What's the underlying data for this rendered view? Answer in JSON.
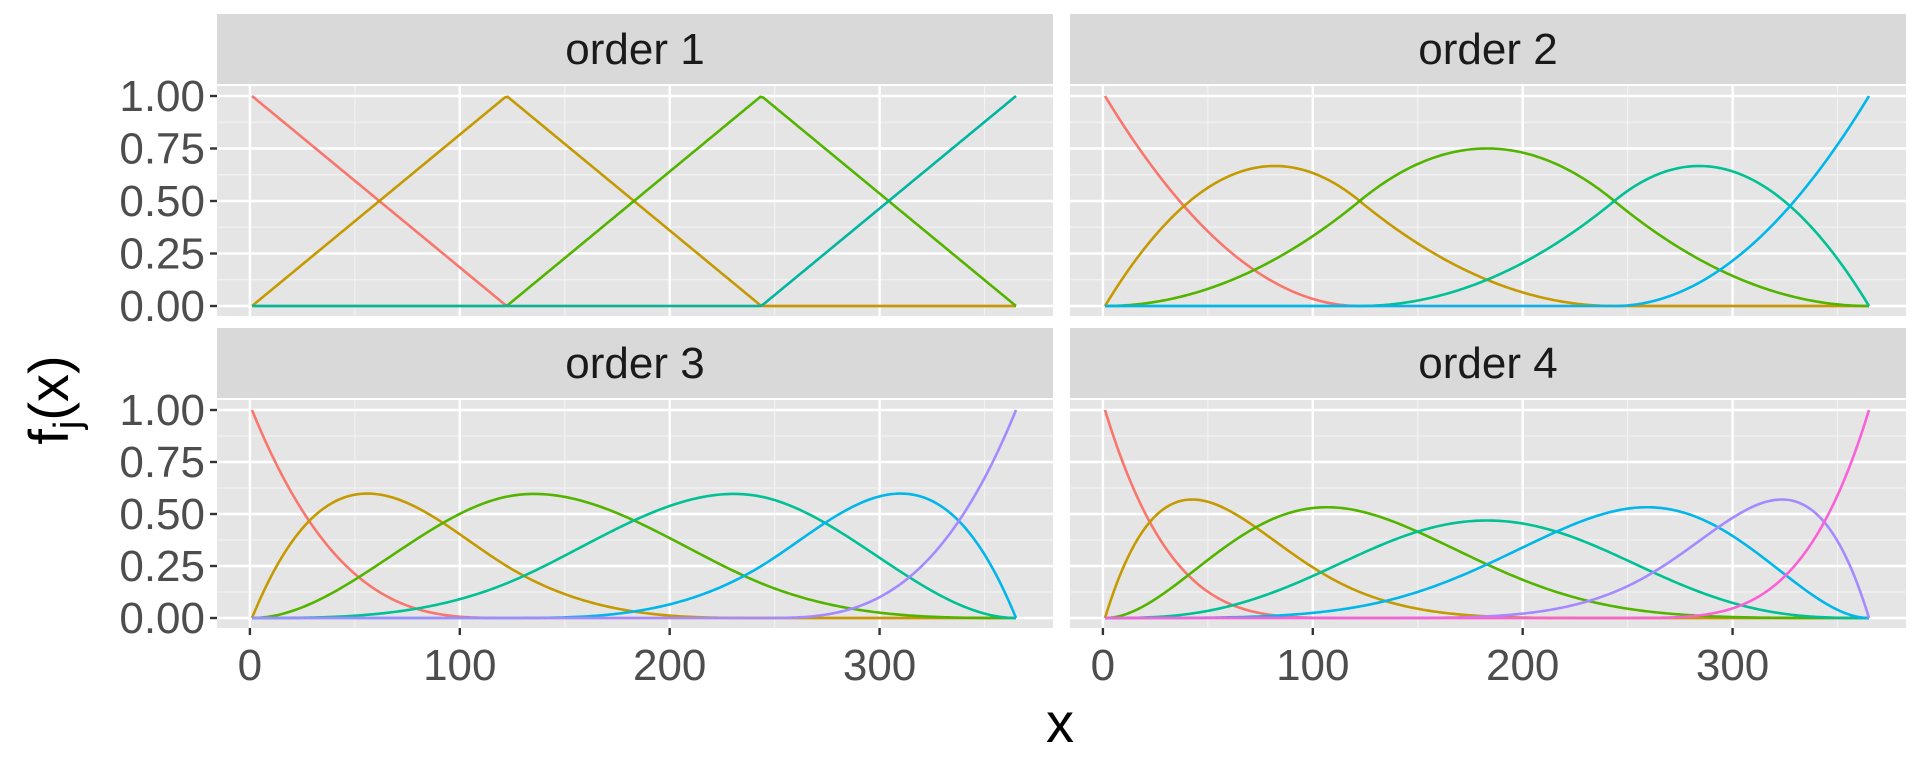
{
  "chart_data": {
    "type": "line",
    "title": "",
    "xlabel": "x",
    "ylabel": "f_j(x)",
    "ylabel_main": "f",
    "ylabel_sub": "j",
    "ylabel_tail": "(x)",
    "xlim": [
      1,
      365
    ],
    "ylim": [
      0,
      1
    ],
    "x_ticks": [
      0,
      100,
      200,
      300
    ],
    "x_tick_labels": [
      "0",
      "100",
      "200",
      "300"
    ],
    "y_ticks": [
      0,
      0.25,
      0.5,
      0.75,
      1
    ],
    "y_tick_labels": [
      "0.00",
      "0.25",
      "0.50",
      "0.75",
      "1.00"
    ],
    "grid": true,
    "legend": "none",
    "knots": [
      1,
      122.33,
      243.67,
      365
    ],
    "series_colors": [
      "#F8766D",
      "#C49A00",
      "#53B400",
      "#00C094",
      "#00B6EB",
      "#A58AFF",
      "#FB61D7"
    ],
    "panels": [
      {
        "strip": "order 1",
        "degree": 1,
        "n_basis": 4,
        "colors": [
          "#F8766D",
          "#C49A00",
          "#53B400",
          "#00B6A0"
        ]
      },
      {
        "strip": "order 2",
        "degree": 2,
        "n_basis": 5,
        "colors": [
          "#F8766D",
          "#C49A00",
          "#53B400",
          "#00C094",
          "#00B6EB"
        ]
      },
      {
        "strip": "order 3",
        "degree": 3,
        "n_basis": 6,
        "colors": [
          "#F8766D",
          "#C49A00",
          "#53B400",
          "#00C094",
          "#00B6EB",
          "#A58AFF"
        ]
      },
      {
        "strip": "order 4",
        "degree": 4,
        "n_basis": 7,
        "colors": [
          "#F8766D",
          "#C49A00",
          "#53B400",
          "#00C094",
          "#00B6EB",
          "#A58AFF",
          "#FB61D7"
        ]
      }
    ]
  }
}
